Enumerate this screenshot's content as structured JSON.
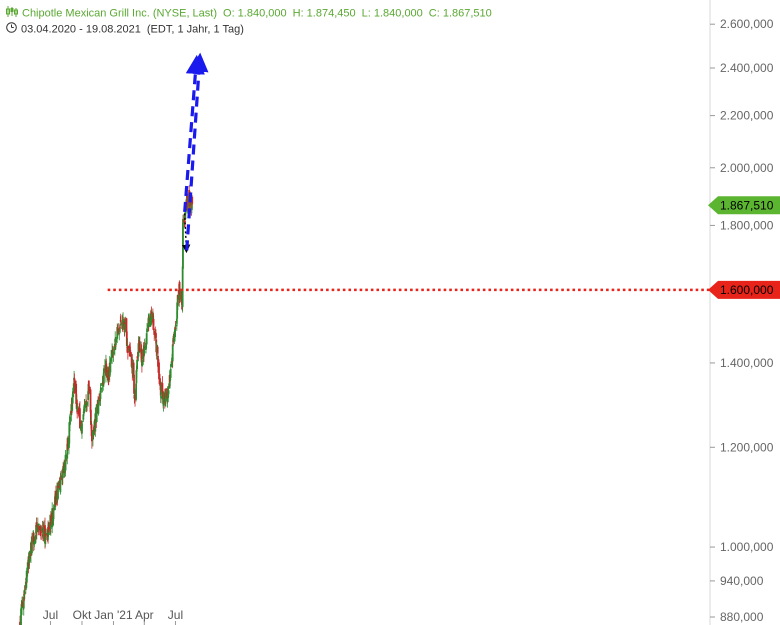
{
  "header": {
    "name": "Chipotle Mexican Grill Inc. (NYSE, Last)",
    "open": "O: 1.840,000",
    "high": "H: 1.874,450",
    "low": "L: 1.840,000",
    "close": "C: 1.867,510",
    "range": "03.04.2020 - 19.08.2021",
    "interval": "(EDT, 1 Jahr, 1 Tag)",
    "icons": [
      "candlestick-icon",
      "clock-icon"
    ]
  },
  "colors": {
    "up": "#2e8b2e",
    "down": "#c62828",
    "header_green": "#5aa832",
    "price_badge": "#5bb531",
    "level_badge": "#e8231a",
    "arrow": "#1a1aee"
  },
  "chart_data": {
    "type": "candlestick",
    "y_scale": "log",
    "ylim": [
      870,
      2700
    ],
    "y_ticks": [
      {
        "value": 2600,
        "label": "2.600,000"
      },
      {
        "value": 2400,
        "label": "2.400,000"
      },
      {
        "value": 2200,
        "label": "2.200,000"
      },
      {
        "value": 2000,
        "label": "2.000,000"
      },
      {
        "value": 1800,
        "label": "1.800,000"
      },
      {
        "value": 1400,
        "label": "1.400,000"
      },
      {
        "value": 1200,
        "label": "1.200,000"
      },
      {
        "value": 1000,
        "label": "1.000,000"
      },
      {
        "value": 940,
        "label": "940,000"
      },
      {
        "value": 880,
        "label": "880,000"
      }
    ],
    "x_ticks": [
      {
        "date": "2020-07-01",
        "label": "Jul"
      },
      {
        "date": "2020-10-01",
        "label": "Okt"
      },
      {
        "date": "2021-01-01",
        "label": "Jan '21"
      },
      {
        "date": "2021-04-01",
        "label": "Apr"
      },
      {
        "date": "2021-07-01",
        "label": "Jul"
      }
    ],
    "last_price": {
      "value": 1867.51,
      "label": "1.867,510"
    },
    "resistance": {
      "value": 1600,
      "label": "1.600,000",
      "from": "2020-12-15",
      "to": "2021-08-19"
    },
    "close_path": [
      [
        "2020-04-03",
        870
      ],
      [
        "2020-04-15",
        920
      ],
      [
        "2020-04-30",
        980
      ],
      [
        "2020-05-15",
        1020
      ],
      [
        "2020-05-29",
        1040
      ],
      [
        "2020-06-15",
        1020
      ],
      [
        "2020-06-30",
        1040
      ],
      [
        "2020-07-15",
        1090
      ],
      [
        "2020-07-31",
        1130
      ],
      [
        "2020-08-14",
        1170
      ],
      [
        "2020-08-28",
        1260
      ],
      [
        "2020-09-08",
        1360
      ],
      [
        "2020-09-18",
        1290
      ],
      [
        "2020-09-30",
        1240
      ],
      [
        "2020-10-12",
        1300
      ],
      [
        "2020-10-22",
        1350
      ],
      [
        "2020-10-30",
        1210
      ],
      [
        "2020-11-10",
        1270
      ],
      [
        "2020-11-25",
        1320
      ],
      [
        "2020-12-08",
        1390
      ],
      [
        "2020-12-18",
        1370
      ],
      [
        "2020-12-31",
        1440
      ],
      [
        "2021-01-12",
        1480
      ],
      [
        "2021-01-26",
        1520
      ],
      [
        "2021-02-05",
        1490
      ],
      [
        "2021-02-16",
        1420
      ],
      [
        "2021-02-26",
        1390
      ],
      [
        "2021-03-05",
        1300
      ],
      [
        "2021-03-15",
        1460
      ],
      [
        "2021-03-26",
        1410
      ],
      [
        "2021-04-05",
        1450
      ],
      [
        "2021-04-16",
        1530
      ],
      [
        "2021-04-26",
        1510
      ],
      [
        "2021-05-07",
        1440
      ],
      [
        "2021-05-18",
        1340
      ],
      [
        "2021-05-28",
        1310
      ],
      [
        "2021-06-08",
        1320
      ],
      [
        "2021-06-18",
        1380
      ],
      [
        "2021-06-30",
        1500
      ],
      [
        "2021-07-12",
        1600
      ],
      [
        "2021-07-21",
        1560
      ],
      [
        "2021-07-23",
        1800
      ],
      [
        "2021-07-30",
        1840
      ],
      [
        "2021-08-06",
        1890
      ],
      [
        "2021-08-19",
        1867.51
      ]
    ],
    "arrows": [
      {
        "from": [
          "2021-07-28",
          1840
        ],
        "to": [
          "2021-08-02",
          1720
        ],
        "style": "dotted-black"
      },
      {
        "from": [
          "2021-07-28",
          1845
        ],
        "to": [
          "2021-08-31",
          2430
        ],
        "style": "dashed-blue"
      },
      {
        "from": [
          "2021-08-03",
          1720
        ],
        "to": [
          "2021-09-10",
          2440
        ],
        "style": "dashed-blue"
      }
    ]
  }
}
